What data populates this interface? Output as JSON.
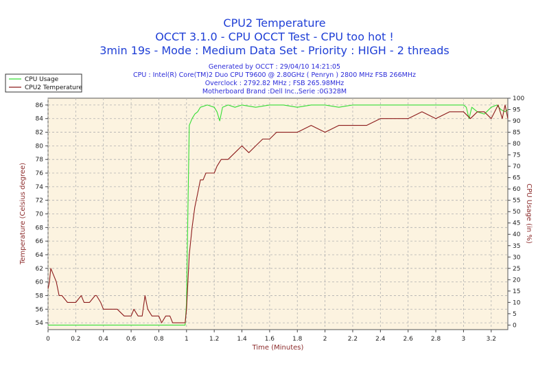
{
  "chart_data": {
    "type": "line",
    "title_lines": [
      "CPU2 Temperature",
      "OCCT 3.1.0 - CPU OCCT Test - CPU too hot !",
      "3min 19s - Mode : Medium Data Set - Priority : HIGH - 2 threads"
    ],
    "info_lines": [
      "Generated by OCCT : 29/04/10 14:21:05",
      "CPU : Intel(R) Core(TM)2 Duo CPU T9600 @ 2.80GHz ( Penryn ) 2800 MHz FSB 266MHz",
      "Overclock : 2792.82 MHz ; FSB 265.98MHz",
      "Motherboard Brand :Dell Inc.,Serie :0G328M"
    ],
    "xlabel": "Time (Minutes)",
    "ylabel_left": "Temperature (Celsius degree)",
    "ylabel_right": "CPU Usage (in %)",
    "xlim": [
      0,
      3.32
    ],
    "ylim_left": [
      53,
      87
    ],
    "ylim_right": [
      -2,
      100
    ],
    "x_ticks": [
      "0",
      "0.2",
      "0.4",
      "0.6",
      "0.8",
      "1",
      "1.2",
      "1.4",
      "1.6",
      "1.8",
      "2",
      "2.2",
      "2.4",
      "2.6",
      "2.8",
      "3",
      "3.2"
    ],
    "y_ticks_left": [
      "54",
      "56",
      "58",
      "60",
      "62",
      "64",
      "66",
      "68",
      "70",
      "72",
      "74",
      "76",
      "78",
      "80",
      "82",
      "84",
      "86"
    ],
    "y_ticks_right": [
      "0",
      "5",
      "10",
      "15",
      "20",
      "25",
      "30",
      "35",
      "40",
      "45",
      "50",
      "55",
      "60",
      "65",
      "70",
      "75",
      "80",
      "85",
      "90",
      "95",
      "100"
    ],
    "grid": true,
    "legend_position": "top-left",
    "colors": {
      "cpu_usage": "#33dd33",
      "temperature": "#8b1a1a",
      "plot_background": "#fcf3e0",
      "grid": "#b0b0b0",
      "title": "#1f3fd6",
      "info": "#2b2bd9"
    },
    "series": [
      {
        "name": "CPU Usage",
        "axis": "right",
        "x": [
          0,
          0.2,
          0.4,
          0.6,
          0.8,
          0.99,
          1.0,
          1.01,
          1.02,
          1.04,
          1.06,
          1.08,
          1.1,
          1.15,
          1.2,
          1.22,
          1.24,
          1.26,
          1.3,
          1.35,
          1.4,
          1.5,
          1.6,
          1.7,
          1.8,
          1.9,
          2.0,
          2.1,
          2.2,
          2.3,
          2.4,
          2.5,
          2.6,
          2.7,
          2.8,
          2.9,
          3.0,
          3.02,
          3.04,
          3.06,
          3.1,
          3.15,
          3.2,
          3.24,
          3.27,
          3.3,
          3.32
        ],
        "y": [
          0,
          0,
          0,
          0,
          0,
          0,
          10,
          50,
          88,
          91,
          93,
          94,
          96,
          97,
          96,
          94,
          90,
          96,
          97,
          96,
          97,
          96,
          97,
          97,
          96,
          97,
          97,
          96,
          97,
          97,
          97,
          97,
          97,
          97,
          97,
          97,
          97,
          96,
          91,
          96,
          94,
          93,
          96,
          97,
          95,
          94,
          95
        ]
      },
      {
        "name": "CPU2 Temperature",
        "axis": "left",
        "x": [
          0,
          0.01,
          0.02,
          0.04,
          0.06,
          0.08,
          0.1,
          0.14,
          0.16,
          0.2,
          0.24,
          0.26,
          0.3,
          0.34,
          0.35,
          0.38,
          0.4,
          0.45,
          0.5,
          0.55,
          0.6,
          0.62,
          0.65,
          0.68,
          0.7,
          0.72,
          0.75,
          0.78,
          0.8,
          0.82,
          0.85,
          0.88,
          0.9,
          0.93,
          0.95,
          0.99,
          1.0,
          1.02,
          1.04,
          1.06,
          1.08,
          1.1,
          1.12,
          1.14,
          1.16,
          1.2,
          1.22,
          1.25,
          1.28,
          1.3,
          1.35,
          1.4,
          1.45,
          1.5,
          1.55,
          1.6,
          1.65,
          1.7,
          1.75,
          1.8,
          1.9,
          2.0,
          2.1,
          2.2,
          2.3,
          2.4,
          2.5,
          2.6,
          2.7,
          2.8,
          2.9,
          3.0,
          3.05,
          3.1,
          3.15,
          3.2,
          3.25,
          3.28,
          3.3,
          3.32
        ],
        "y": [
          59,
          60,
          62,
          61,
          60,
          58,
          58,
          57,
          57,
          57,
          58,
          57,
          57,
          58,
          58,
          57,
          56,
          56,
          56,
          55,
          55,
          56,
          55,
          55,
          58,
          56,
          55,
          55,
          55,
          54,
          55,
          55,
          54,
          54,
          54,
          54,
          56,
          64,
          68,
          71,
          73,
          75,
          75,
          76,
          76,
          76,
          77,
          78,
          78,
          78,
          79,
          80,
          79,
          80,
          81,
          81,
          82,
          82,
          82,
          82,
          83,
          82,
          83,
          83,
          83,
          84,
          84,
          84,
          85,
          84,
          85,
          85,
          84,
          85,
          85,
          84,
          86,
          84,
          86,
          84
        ]
      }
    ]
  }
}
